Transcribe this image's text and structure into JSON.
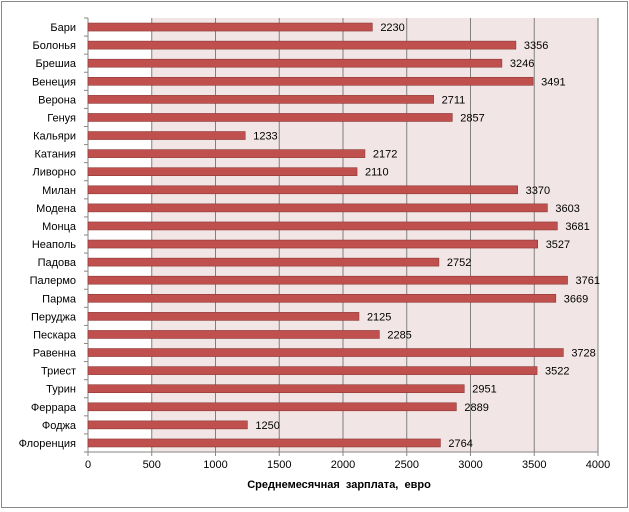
{
  "chart_data": {
    "type": "bar",
    "orientation": "horizontal",
    "title": "",
    "xlabel": "Среднемесячная  зарплата,  евро",
    "ylabel": "",
    "xlim": [
      0,
      4000
    ],
    "x_ticks": [
      0,
      500,
      1000,
      1500,
      2000,
      2500,
      3000,
      3500,
      4000
    ],
    "grid": true,
    "legend": "none",
    "colors": {
      "bar_fill": "#c0504d",
      "bar_edge": "#8c3836",
      "plot_background": "#f2e5e5",
      "grid": "#808080"
    },
    "categories": [
      "Бари",
      "Болонья",
      "Брешиа",
      "Венеция",
      "Верона",
      "Генуя",
      "Кальяри",
      "Катания",
      "Ливорно",
      "Милан",
      "Модена",
      "Монца",
      "Неаполь",
      "Падова",
      "Палермо",
      "Парма",
      "Перуджа",
      "Пескара",
      "Равенна",
      "Триест",
      "Турин",
      "Феррара",
      "Фоджа",
      "Флоренция"
    ],
    "values": [
      2230,
      3356,
      3246,
      3491,
      2711,
      2857,
      1233,
      2172,
      2110,
      3370,
      3603,
      3681,
      3527,
      2752,
      3761,
      3669,
      2125,
      2285,
      3728,
      3522,
      2951,
      2889,
      1250,
      2764
    ]
  }
}
